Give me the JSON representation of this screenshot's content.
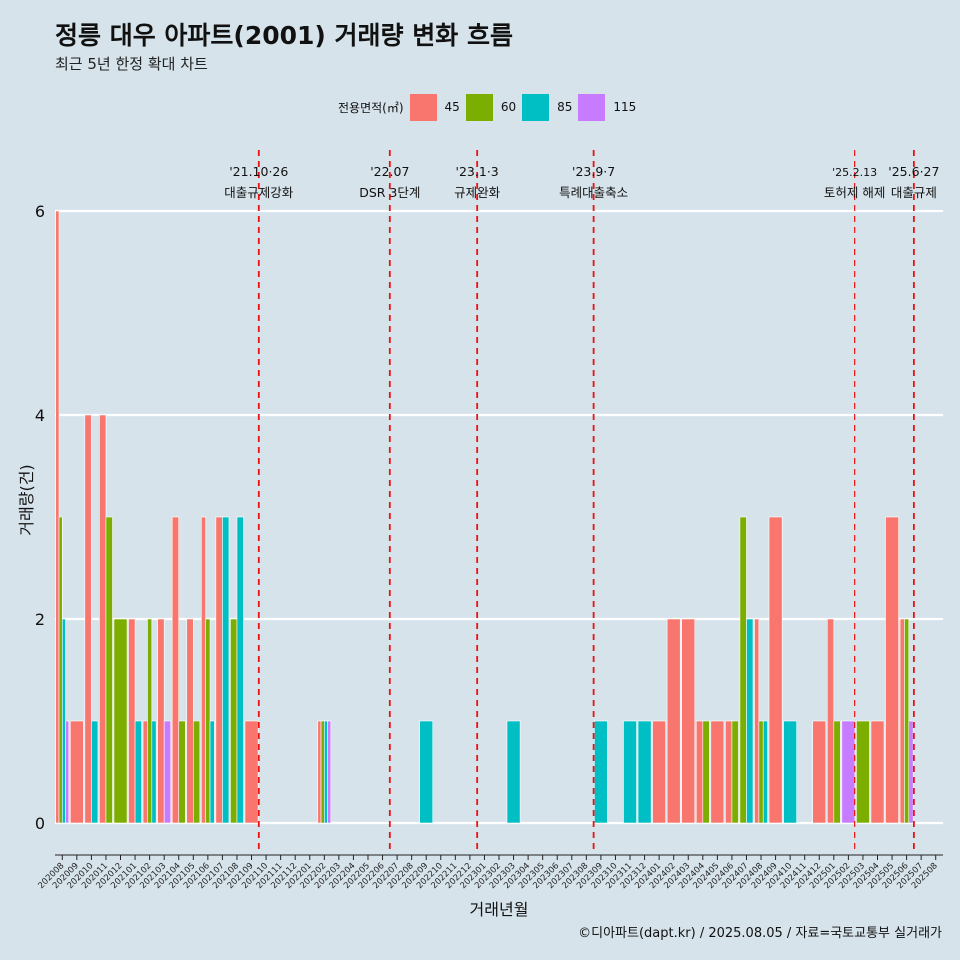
{
  "title": "정릉 대우 아파트(2001) 거래량 변화 흐름",
  "subtitle": "최근 5년 한정 확대 차트",
  "caption": "©디아파트(dapt.kr) / 2025.08.05 / 자료=국토교통부 실거래가",
  "legend": {
    "title": "전용면적(㎡)",
    "items": [
      {
        "label": "45",
        "color": "#f8766d"
      },
      {
        "label": "60",
        "color": "#7cae00"
      },
      {
        "label": "85",
        "color": "#00bfc4"
      },
      {
        "label": "115",
        "color": "#c77cff"
      }
    ]
  },
  "chart_data": {
    "type": "bar",
    "xlabel": "거래년월",
    "ylabel": "거래량(건)",
    "ylim": [
      0,
      6
    ],
    "yticks": [
      0,
      2,
      4,
      6
    ],
    "categories": [
      "202008",
      "202009",
      "202010",
      "202011",
      "202012",
      "202101",
      "202102",
      "202103",
      "202104",
      "202105",
      "202106",
      "202107",
      "202108",
      "202109",
      "202110",
      "202111",
      "202112",
      "202201",
      "202202",
      "202203",
      "202204",
      "202205",
      "202206",
      "202207",
      "202208",
      "202209",
      "202210",
      "202211",
      "202212",
      "202301",
      "202302",
      "202303",
      "202304",
      "202305",
      "202306",
      "202307",
      "202308",
      "202309",
      "202310",
      "202311",
      "202312",
      "202401",
      "202402",
      "202403",
      "202404",
      "202405",
      "202406",
      "202407",
      "202408",
      "202409",
      "202410",
      "202411",
      "202412",
      "202501",
      "202502",
      "202503",
      "202504",
      "202505",
      "202506",
      "202507",
      "202508"
    ],
    "series": [
      {
        "name": "45",
        "color": "#f8766d",
        "values": [
          6,
          1,
          4,
          4,
          0,
          2,
          1,
          2,
          3,
          2,
          3,
          3,
          0,
          1,
          0,
          0,
          0,
          0,
          1,
          0,
          0,
          0,
          0,
          0,
          0,
          0,
          0,
          0,
          0,
          0,
          0,
          0,
          0,
          0,
          0,
          0,
          0,
          0,
          0,
          0,
          0,
          1,
          2,
          2,
          1,
          1,
          1,
          0,
          2,
          3,
          0,
          0,
          1,
          2,
          0,
          0,
          1,
          3,
          2,
          0,
          0
        ]
      },
      {
        "name": "60",
        "color": "#7cae00",
        "values": [
          3,
          0,
          0,
          3,
          2,
          0,
          2,
          0,
          1,
          1,
          2,
          0,
          2,
          0,
          0,
          0,
          0,
          0,
          1,
          0,
          0,
          0,
          0,
          0,
          0,
          0,
          0,
          0,
          0,
          0,
          0,
          0,
          0,
          0,
          0,
          0,
          0,
          0,
          0,
          0,
          0,
          0,
          0,
          0,
          1,
          0,
          1,
          3,
          1,
          0,
          0,
          0,
          0,
          1,
          0,
          1,
          0,
          0,
          2,
          0,
          0
        ]
      },
      {
        "name": "85",
        "color": "#00bfc4",
        "values": [
          2,
          0,
          1,
          0,
          0,
          1,
          1,
          0,
          0,
          0,
          1,
          3,
          3,
          0,
          0,
          0,
          0,
          0,
          1,
          0,
          0,
          0,
          0,
          0,
          0,
          1,
          0,
          0,
          0,
          0,
          0,
          1,
          0,
          0,
          0,
          0,
          0,
          1,
          0,
          1,
          1,
          0,
          0,
          0,
          0,
          0,
          0,
          2,
          1,
          0,
          1,
          0,
          0,
          0,
          0,
          0,
          0,
          0,
          0,
          0,
          0
        ]
      },
      {
        "name": "115",
        "color": "#c77cff",
        "values": [
          1,
          0,
          0,
          0,
          0,
          0,
          0,
          1,
          0,
          0,
          0,
          0,
          0,
          0,
          0,
          0,
          0,
          0,
          1,
          0,
          0,
          0,
          0,
          0,
          0,
          0,
          0,
          0,
          0,
          0,
          0,
          0,
          0,
          0,
          0,
          0,
          0,
          0,
          0,
          0,
          0,
          0,
          0,
          0,
          0,
          0,
          0,
          0,
          0,
          0,
          0,
          0,
          0,
          0,
          1,
          0,
          0,
          0,
          1,
          0,
          0
        ]
      }
    ],
    "events": [
      {
        "x": "202110",
        "label_top": "'21.10·26",
        "label_bottom": "대출규제강화"
      },
      {
        "x": "202207",
        "label_top": "'22.07",
        "label_bottom": "DSR 3단계"
      },
      {
        "x": "202301",
        "label_top": "'23.1·3",
        "label_bottom": "규제완화"
      },
      {
        "x": "202309",
        "label_top": "'23.9·7",
        "label_bottom": "특례대출축소"
      },
      {
        "x": "202503",
        "label_top": "'25.2.13",
        "label_bottom": "토허제 해제"
      },
      {
        "x": "202507",
        "label_top": "'25.6·27",
        "label_bottom": "대출규제"
      }
    ],
    "grid": true,
    "legend_position": "top"
  }
}
